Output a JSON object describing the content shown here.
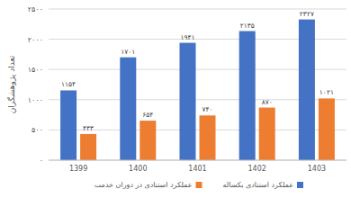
{
  "chart_data": {
    "type": "bar",
    "y_label": "تعداد پژوهشگران",
    "categories": [
      "1399",
      "1400",
      "1401",
      "1402",
      "1403"
    ],
    "series": [
      {
        "name": "عملکرد استنادی یکساله",
        "color": "#4472c4",
        "values": [
          1154,
          1701,
          1941,
          2135,
          2327
        ],
        "value_labels": [
          "۱۱۵۴",
          "۱۷۰۱",
          "۱۹۴۱",
          "۲۱۳۵",
          "۲۳۲۷"
        ]
      },
      {
        "name": "عملکرد استنادی در دوران خدمت",
        "color": "#ed7d31",
        "values": [
          433,
          654,
          740,
          870,
          1021
        ],
        "value_labels": [
          "۴۳۳",
          "۶۵۴",
          "۷۴۰",
          "۸۷۰",
          "۱۰۲۱"
        ]
      }
    ],
    "ylim": [
      0,
      2500
    ],
    "yticks": [
      {
        "value": 0,
        "label": "۰"
      },
      {
        "value": 500,
        "label": "۵۰۰"
      },
      {
        "value": 1000,
        "label": "۱۰۰۰"
      },
      {
        "value": 1500,
        "label": "۱۵۰۰"
      },
      {
        "value": 2000,
        "label": "۲۰۰۰"
      },
      {
        "value": 2500,
        "label": "۲۵۰۰"
      }
    ],
    "grid": true,
    "legend": "bottom",
    "data_labels": true
  }
}
